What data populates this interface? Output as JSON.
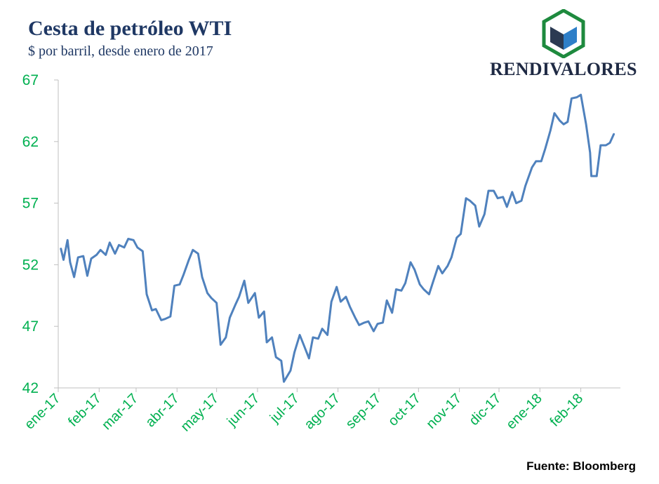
{
  "header": {
    "title": "Cesta de petróleo WTI",
    "subtitle": "$ por barril, desde enero de 2017"
  },
  "logo": {
    "text": "RENDIVALORES",
    "icon": "cube-hexagon-logo",
    "colors": {
      "hexagon": "#1E8A3E",
      "cube_dark": "#2B3A52",
      "cube_light": "#2E7FC8",
      "cube_top": "#FFFFFF"
    }
  },
  "source": "Fuente: Bloomberg",
  "colors": {
    "line": "#4F81BD",
    "ticks": "#00B050",
    "axis": "#BFBFBF",
    "title": "#1F3864"
  },
  "chart_data": {
    "type": "line",
    "title": "Cesta de petróleo WTI",
    "subtitle": "$ por barril, desde enero de 2017",
    "ylim": [
      42,
      67
    ],
    "yticks": [
      42,
      47,
      52,
      57,
      62,
      67
    ],
    "grid": false,
    "x_domain": [
      "2017-01-01",
      "2018-03-03"
    ],
    "x_tick_labels": [
      "ene-17",
      "feb-17",
      "mar-17",
      "abr-17",
      "may-17",
      "jun-17",
      "jul-17",
      "ago-17",
      "sep-17",
      "oct-17",
      "nov-17",
      "dic-17",
      "ene-18",
      "feb-18"
    ],
    "x_tick_dates": [
      "2017-01-01",
      "2017-02-01",
      "2017-03-01",
      "2017-04-01",
      "2017-05-01",
      "2017-06-01",
      "2017-07-01",
      "2017-08-01",
      "2017-09-01",
      "2017-10-01",
      "2017-11-01",
      "2017-12-01",
      "2018-01-01",
      "2018-02-01"
    ],
    "series": [
      {
        "points": [
          [
            "2017-01-03",
            53.3
          ],
          [
            "2017-01-05",
            52.4
          ],
          [
            "2017-01-08",
            54.0
          ],
          [
            "2017-01-10",
            52.2
          ],
          [
            "2017-01-13",
            51.0
          ],
          [
            "2017-01-16",
            52.6
          ],
          [
            "2017-01-20",
            52.7
          ],
          [
            "2017-01-23",
            51.1
          ],
          [
            "2017-01-26",
            52.5
          ],
          [
            "2017-01-30",
            52.8
          ],
          [
            "2017-02-02",
            53.2
          ],
          [
            "2017-02-06",
            52.8
          ],
          [
            "2017-02-09",
            53.8
          ],
          [
            "2017-02-13",
            52.9
          ],
          [
            "2017-02-16",
            53.6
          ],
          [
            "2017-02-20",
            53.4
          ],
          [
            "2017-02-23",
            54.1
          ],
          [
            "2017-02-27",
            54.0
          ],
          [
            "2017-03-02",
            53.4
          ],
          [
            "2017-03-06",
            53.1
          ],
          [
            "2017-03-09",
            49.6
          ],
          [
            "2017-03-13",
            48.3
          ],
          [
            "2017-03-16",
            48.4
          ],
          [
            "2017-03-20",
            47.5
          ],
          [
            "2017-03-23",
            47.6
          ],
          [
            "2017-03-27",
            47.8
          ],
          [
            "2017-03-30",
            50.3
          ],
          [
            "2017-04-03",
            50.4
          ],
          [
            "2017-04-06",
            51.2
          ],
          [
            "2017-04-10",
            52.4
          ],
          [
            "2017-04-13",
            53.2
          ],
          [
            "2017-04-17",
            52.9
          ],
          [
            "2017-04-20",
            51.0
          ],
          [
            "2017-04-24",
            49.7
          ],
          [
            "2017-04-27",
            49.3
          ],
          [
            "2017-05-01",
            48.9
          ],
          [
            "2017-05-04",
            45.5
          ],
          [
            "2017-05-08",
            46.1
          ],
          [
            "2017-05-11",
            47.7
          ],
          [
            "2017-05-15",
            48.7
          ],
          [
            "2017-05-18",
            49.4
          ],
          [
            "2017-05-22",
            50.7
          ],
          [
            "2017-05-25",
            48.9
          ],
          [
            "2017-05-30",
            49.7
          ],
          [
            "2017-06-02",
            47.7
          ],
          [
            "2017-06-06",
            48.2
          ],
          [
            "2017-06-08",
            45.7
          ],
          [
            "2017-06-12",
            46.1
          ],
          [
            "2017-06-15",
            44.5
          ],
          [
            "2017-06-19",
            44.2
          ],
          [
            "2017-06-21",
            42.5
          ],
          [
            "2017-06-26",
            43.4
          ],
          [
            "2017-06-29",
            44.9
          ],
          [
            "2017-07-03",
            46.3
          ],
          [
            "2017-07-06",
            45.5
          ],
          [
            "2017-07-10",
            44.4
          ],
          [
            "2017-07-13",
            46.1
          ],
          [
            "2017-07-17",
            46.0
          ],
          [
            "2017-07-20",
            46.8
          ],
          [
            "2017-07-24",
            46.3
          ],
          [
            "2017-07-27",
            49.0
          ],
          [
            "2017-07-31",
            50.2
          ],
          [
            "2017-08-03",
            49.0
          ],
          [
            "2017-08-07",
            49.4
          ],
          [
            "2017-08-10",
            48.6
          ],
          [
            "2017-08-14",
            47.7
          ],
          [
            "2017-08-17",
            47.1
          ],
          [
            "2017-08-21",
            47.3
          ],
          [
            "2017-08-24",
            47.4
          ],
          [
            "2017-08-28",
            46.6
          ],
          [
            "2017-08-31",
            47.2
          ],
          [
            "2017-09-04",
            47.3
          ],
          [
            "2017-09-07",
            49.1
          ],
          [
            "2017-09-11",
            48.1
          ],
          [
            "2017-09-14",
            50.0
          ],
          [
            "2017-09-18",
            49.9
          ],
          [
            "2017-09-21",
            50.5
          ],
          [
            "2017-09-25",
            52.2
          ],
          [
            "2017-09-28",
            51.6
          ],
          [
            "2017-10-02",
            50.4
          ],
          [
            "2017-10-05",
            50.0
          ],
          [
            "2017-10-09",
            49.6
          ],
          [
            "2017-10-12",
            50.6
          ],
          [
            "2017-10-16",
            51.9
          ],
          [
            "2017-10-19",
            51.3
          ],
          [
            "2017-10-23",
            51.9
          ],
          [
            "2017-10-26",
            52.6
          ],
          [
            "2017-10-30",
            54.2
          ],
          [
            "2017-11-02",
            54.5
          ],
          [
            "2017-11-06",
            57.4
          ],
          [
            "2017-11-09",
            57.2
          ],
          [
            "2017-11-13",
            56.8
          ],
          [
            "2017-11-16",
            55.1
          ],
          [
            "2017-11-20",
            56.1
          ],
          [
            "2017-11-23",
            58.0
          ],
          [
            "2017-11-27",
            58.0
          ],
          [
            "2017-11-30",
            57.4
          ],
          [
            "2017-12-04",
            57.5
          ],
          [
            "2017-12-07",
            56.7
          ],
          [
            "2017-12-11",
            57.9
          ],
          [
            "2017-12-14",
            57.0
          ],
          [
            "2017-12-18",
            57.2
          ],
          [
            "2017-12-21",
            58.4
          ],
          [
            "2017-12-26",
            59.9
          ],
          [
            "2017-12-29",
            60.4
          ],
          [
            "2018-01-02",
            60.4
          ],
          [
            "2018-01-05",
            61.4
          ],
          [
            "2018-01-09",
            62.9
          ],
          [
            "2018-01-12",
            64.3
          ],
          [
            "2018-01-16",
            63.7
          ],
          [
            "2018-01-19",
            63.4
          ],
          [
            "2018-01-22",
            63.6
          ],
          [
            "2018-01-25",
            65.5
          ],
          [
            "2018-01-29",
            65.6
          ],
          [
            "2018-02-01",
            65.8
          ],
          [
            "2018-02-05",
            63.4
          ],
          [
            "2018-02-08",
            61.1
          ],
          [
            "2018-02-09",
            59.2
          ],
          [
            "2018-02-13",
            59.2
          ],
          [
            "2018-02-16",
            61.7
          ],
          [
            "2018-02-20",
            61.7
          ],
          [
            "2018-02-23",
            61.9
          ],
          [
            "2018-02-26",
            62.6
          ]
        ]
      }
    ]
  }
}
